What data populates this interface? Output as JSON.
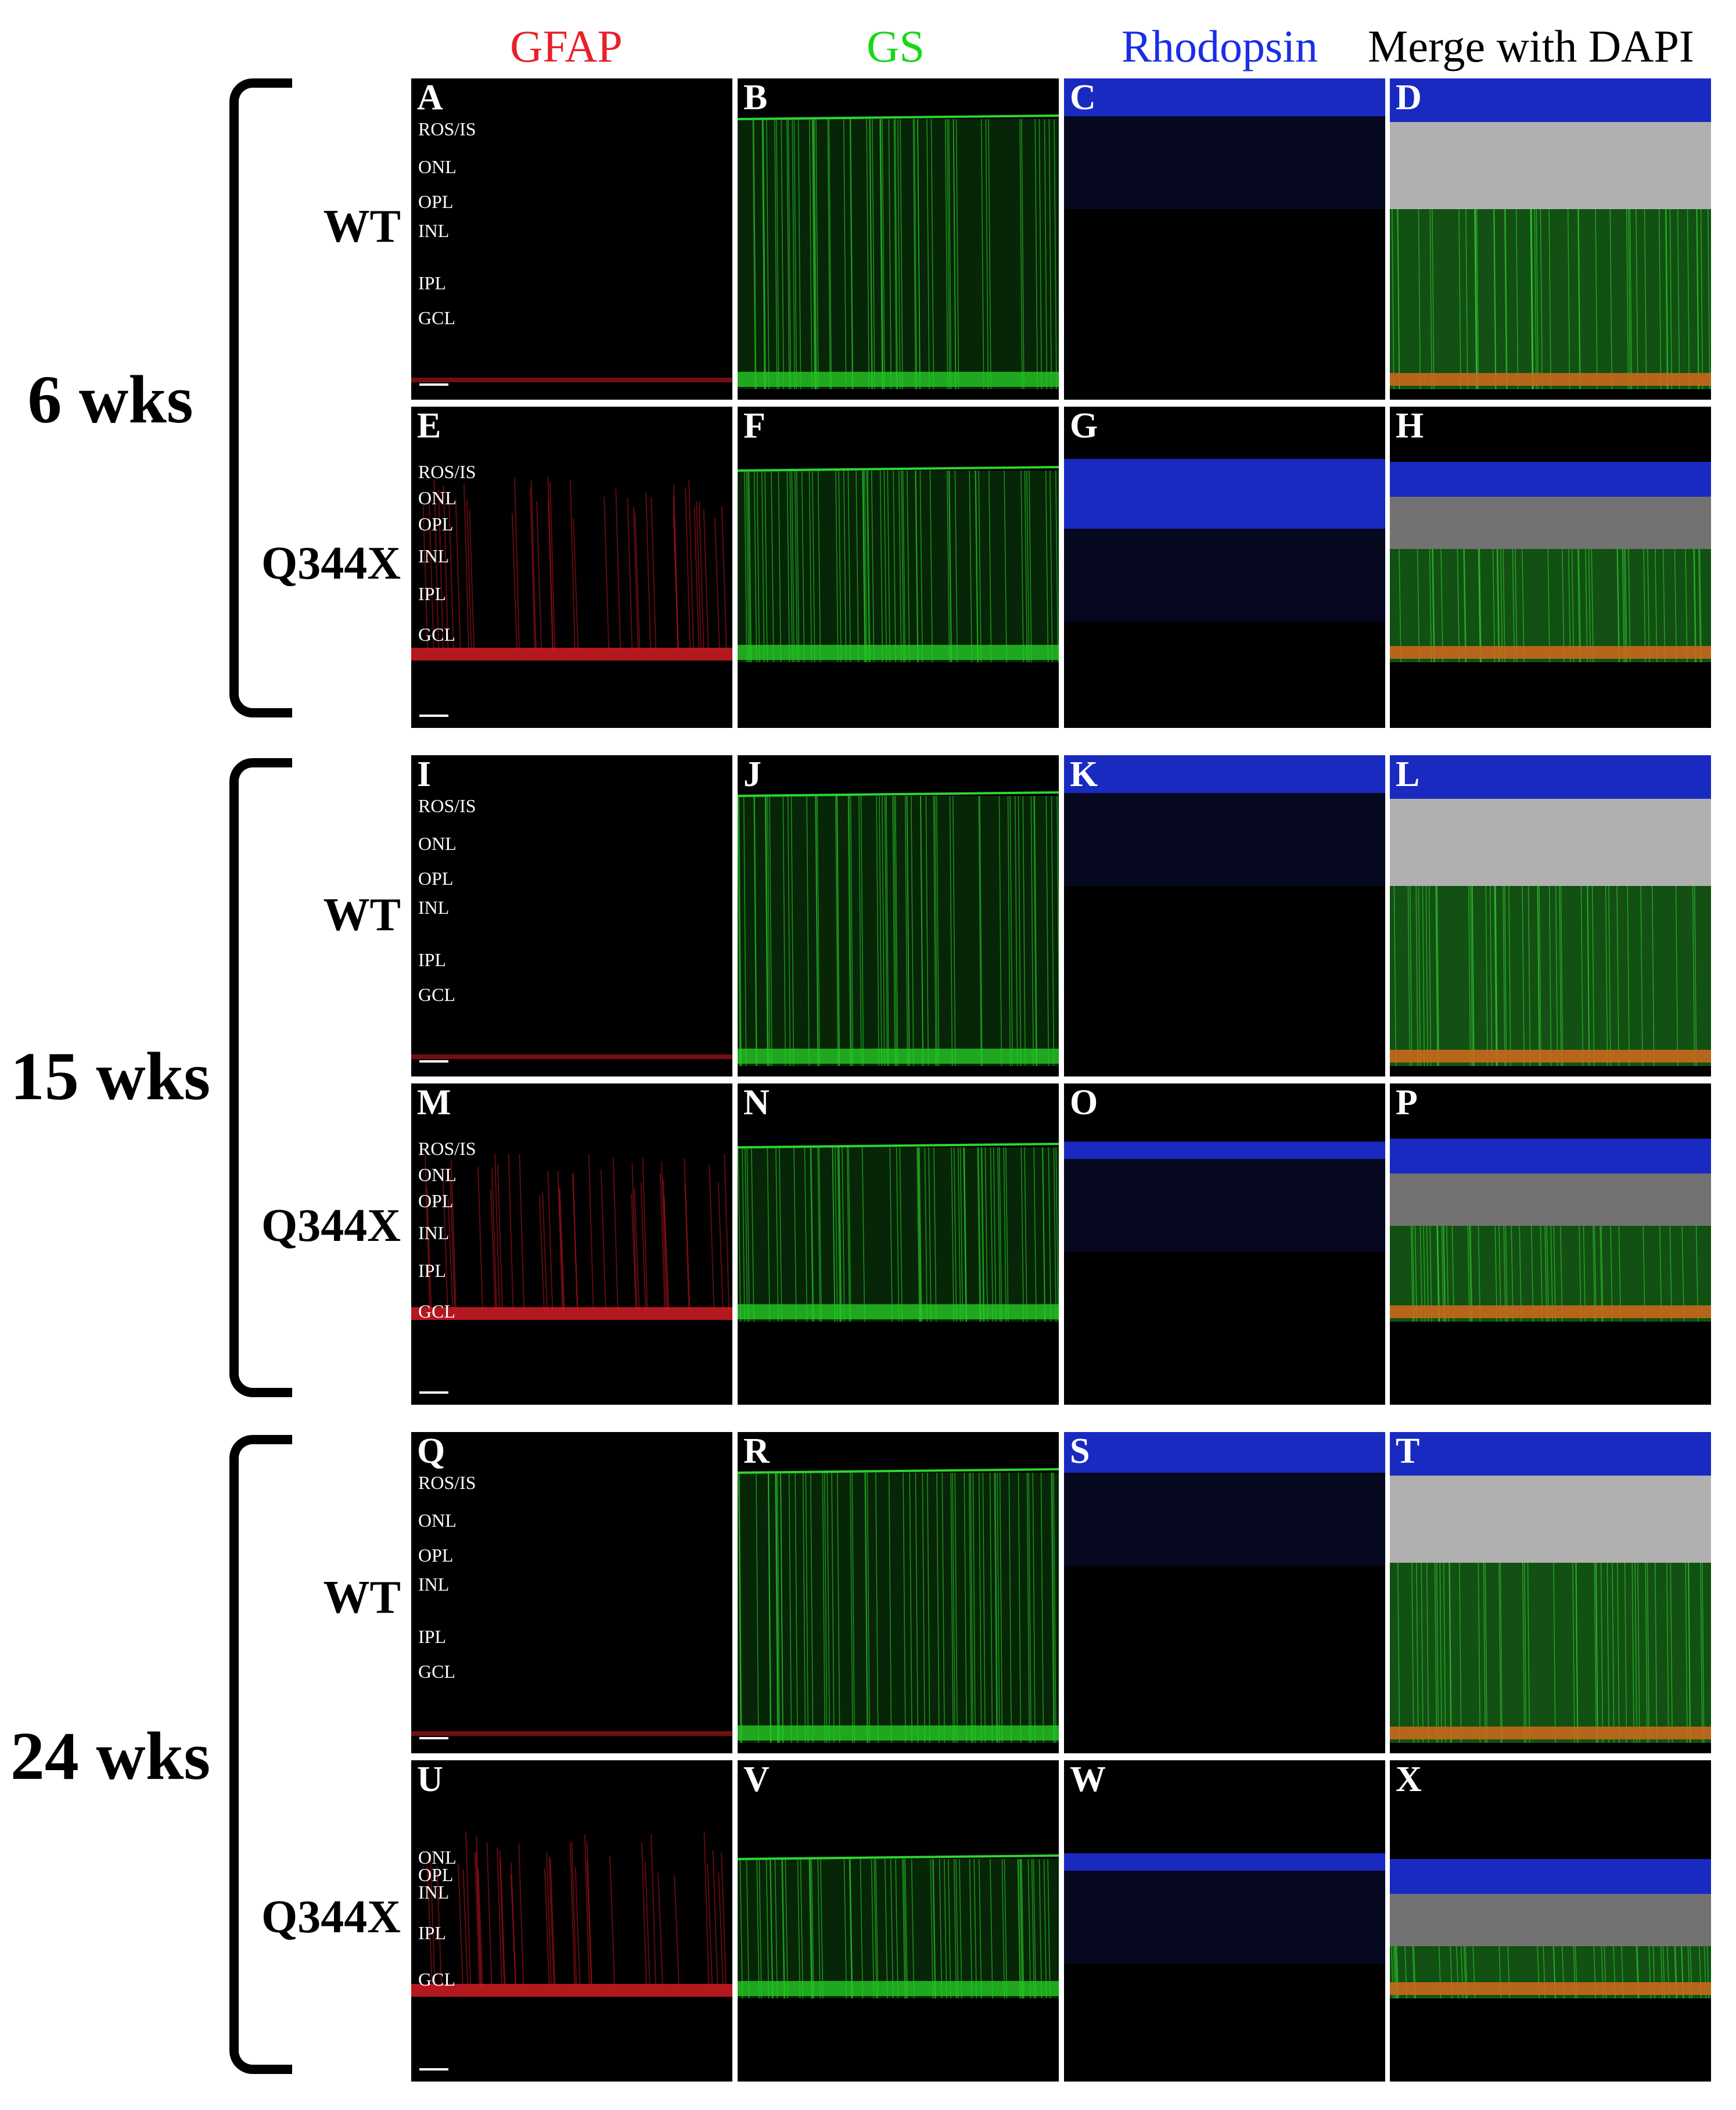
{
  "columns": [
    {
      "label": "GFAP",
      "color": "#e8202a"
    },
    {
      "label": "GS",
      "color": "#16d916"
    },
    {
      "label": "Rhodopsin",
      "color": "#1a2ee6"
    },
    {
      "label": "Merge with DAPI",
      "color": "#000000"
    }
  ],
  "groups": [
    {
      "time": "6 wks",
      "rows": [
        {
          "genotype": "WT",
          "type": "wt",
          "panel_letters": [
            "A",
            "B",
            "C",
            "D"
          ],
          "layers": [
            "ROS/IS",
            "ONL",
            "OPL",
            "INL",
            "IPL",
            "GCL"
          ]
        },
        {
          "genotype": "Q344X",
          "type": "mut",
          "panel_letters": [
            "E",
            "F",
            "G",
            "H"
          ],
          "layers": [
            "ROS/IS",
            "ONL",
            "OPL",
            "INL",
            "IPL",
            "GCL"
          ]
        }
      ]
    },
    {
      "time": "15 wks",
      "rows": [
        {
          "genotype": "WT",
          "type": "wt",
          "panel_letters": [
            "I",
            "J",
            "K",
            "L"
          ],
          "layers": [
            "ROS/IS",
            "ONL",
            "OPL",
            "INL",
            "IPL",
            "GCL"
          ]
        },
        {
          "genotype": "Q344X",
          "type": "mut",
          "panel_letters": [
            "M",
            "N",
            "O",
            "P"
          ],
          "layers": [
            "ROS/IS",
            "ONL",
            "OPL",
            "INL",
            "IPL",
            "GCL"
          ]
        }
      ]
    },
    {
      "time": "24 wks",
      "rows": [
        {
          "genotype": "WT",
          "type": "wt",
          "panel_letters": [
            "Q",
            "R",
            "S",
            "T"
          ],
          "layers": [
            "ROS/IS",
            "ONL",
            "OPL",
            "INL",
            "IPL",
            "GCL"
          ]
        },
        {
          "genotype": "Q344X",
          "type": "mut",
          "panel_letters": [
            "U",
            "V",
            "W",
            "X"
          ],
          "layers": [
            "ONL",
            "OPL",
            "INL",
            "IPL",
            "GCL"
          ]
        }
      ]
    }
  ]
}
